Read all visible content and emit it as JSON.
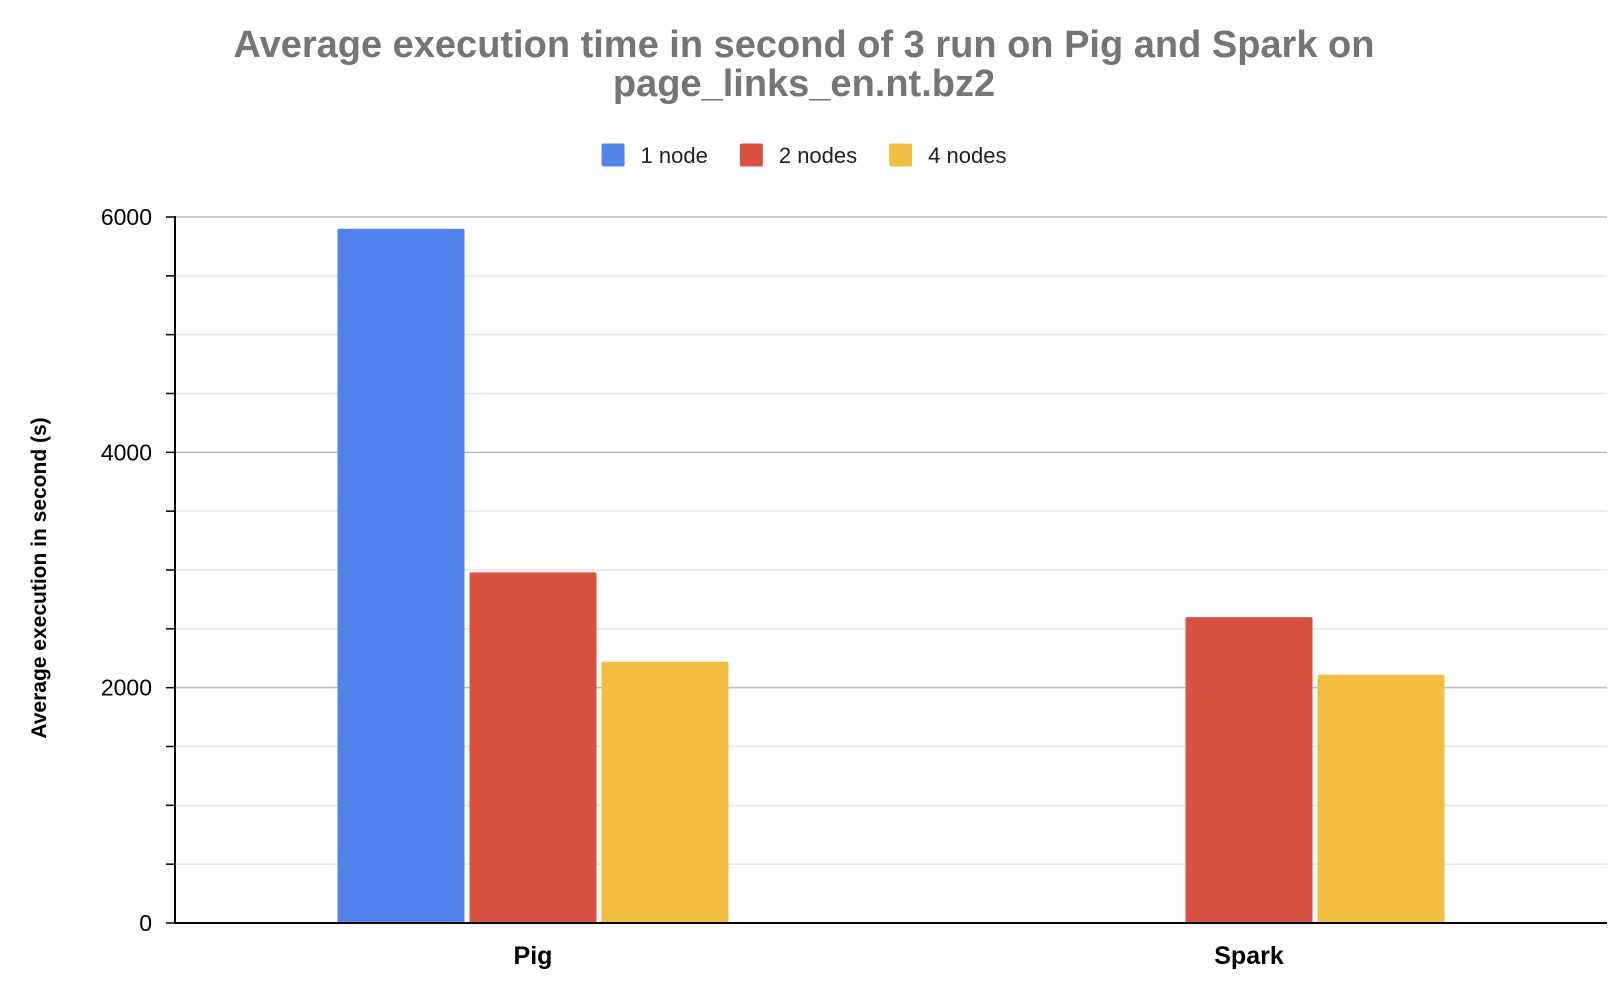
{
  "chart_data": {
    "type": "bar",
    "title_line1": "Average execution time in second of 3 run on Pig and Spark on",
    "title_line2": "page_links_en.nt.bz2",
    "xlabel": "",
    "ylabel": "Average execution in second (s)",
    "categories": [
      "Pig",
      "Spark"
    ],
    "series": [
      {
        "name": "1 node",
        "color": "#5283EC",
        "values": [
          5900,
          null
        ]
      },
      {
        "name": "2 nodes",
        "color": "#D95140",
        "values": [
          2980,
          2600
        ]
      },
      {
        "name": "4 nodes",
        "color": "#F2BE42",
        "values": [
          2220,
          2110
        ]
      }
    ],
    "ylim": [
      0,
      6000
    ],
    "yticks": [
      0,
      2000,
      4000,
      6000
    ],
    "yminor_step": 500,
    "legend_position": "top-center",
    "grid": true,
    "colors": {
      "title": "#757575",
      "axis": "#000000",
      "grid_major": "#BDBDBD",
      "grid_minor": "#E6E6E6"
    }
  }
}
